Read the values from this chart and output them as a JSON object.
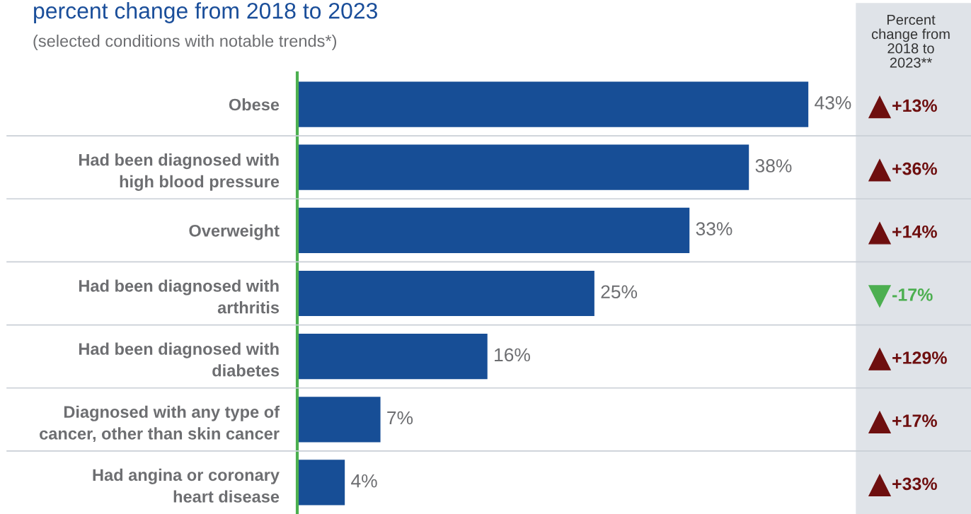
{
  "chart_data": {
    "type": "bar",
    "orientation": "horizontal",
    "title": "percent change from 2018 to 2023",
    "subtitle": "(selected conditions with notable trends*)",
    "categories": [
      "Obese",
      "Had been diagnosed with\nhigh blood pressure",
      "Overweight",
      "Had been diagnosed with\narthritis",
      "Had been diagnosed with\ndiabetes",
      "Diagnosed with any type of\ncancer, other than skin cancer",
      "Had angina or coronary\nheart disease"
    ],
    "values": [
      43,
      38,
      33,
      25,
      16,
      7,
      4
    ],
    "value_labels": [
      "43%",
      "38%",
      "33%",
      "25%",
      "16%",
      "7%",
      "4%"
    ],
    "color": "#174e96",
    "annotations": [
      "Percent\nchange from\n2018 to\n2023**",
      "+13%",
      "+36%",
      "+14%",
      "-17%",
      "+129%",
      "+17%",
      "+33%"
    ],
    "grid": false,
    "legend": false
  }
}
